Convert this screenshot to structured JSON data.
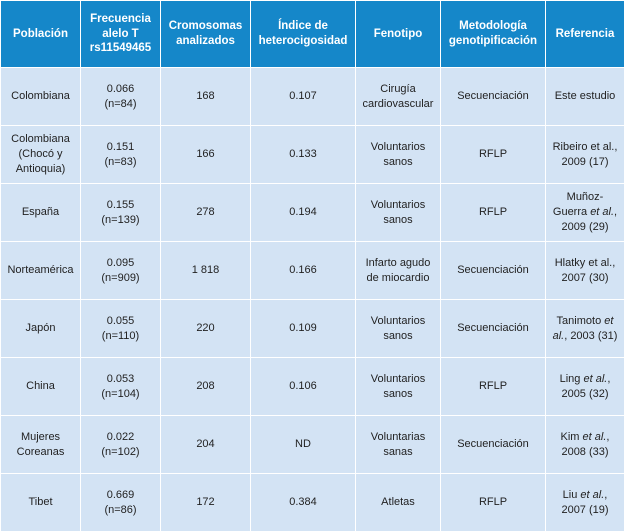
{
  "table": {
    "header": [
      "Población",
      "Frecuencia alelo T rs11549465",
      "Cromosomas analizados",
      "Índice de heterocigosidad",
      "Fenotipo",
      "Metodología genotipificación",
      "Referencia"
    ],
    "rows": [
      [
        "Colombiana",
        "0.066 (n=84)",
        "168",
        "0.107",
        "Cirugía cardiovascular",
        "Secuenciación",
        "Este estudio"
      ],
      [
        "Colombiana (Chocó y Antioquia)",
        "0.151 (n=83)",
        "166",
        "0.133",
        "Voluntarios sanos",
        "RFLP",
        "Ribeiro et al., 2009 (17)"
      ],
      [
        "España",
        "0.155 (n=139)",
        "278",
        "0.194",
        "Voluntarios sanos",
        "RFLP",
        [
          "Muñoz-Guerra ",
          {
            "text": "et al.",
            "italic": true
          },
          ", 2009 (29)"
        ]
      ],
      [
        "Norteamérica",
        "0.095 (n=909)",
        "1 818",
        "0.166",
        "Infarto agudo de miocardio",
        "Secuenciación",
        "Hlatky et al., 2007 (30)"
      ],
      [
        "Japón",
        "0.055 (n=110)",
        "220",
        "0.109",
        "Voluntarios sanos",
        "Secuenciación",
        [
          "Tanimoto ",
          {
            "text": "et al.",
            "italic": true
          },
          ", 2003 (31)"
        ]
      ],
      [
        "China",
        "0.053 (n=104)",
        "208",
        "0.106",
        "Voluntarios sanos",
        "RFLP",
        [
          "Ling ",
          {
            "text": "et al.",
            "italic": true
          },
          ", 2005 (32)"
        ]
      ],
      [
        "Mujeres Coreanas",
        "0.022 (n=102)",
        "204",
        "ND",
        "Voluntarias sanas",
        "Secuenciación",
        [
          "Kim ",
          {
            "text": "et al.",
            "italic": true
          },
          ", 2008 (33)"
        ]
      ],
      [
        "Tibet",
        "0.669 (n=86)",
        "172",
        "0.384",
        "Atletas",
        "RFLP",
        [
          "Liu ",
          {
            "text": "et al.",
            "italic": true
          },
          ", 2007 (19)"
        ]
      ]
    ]
  }
}
